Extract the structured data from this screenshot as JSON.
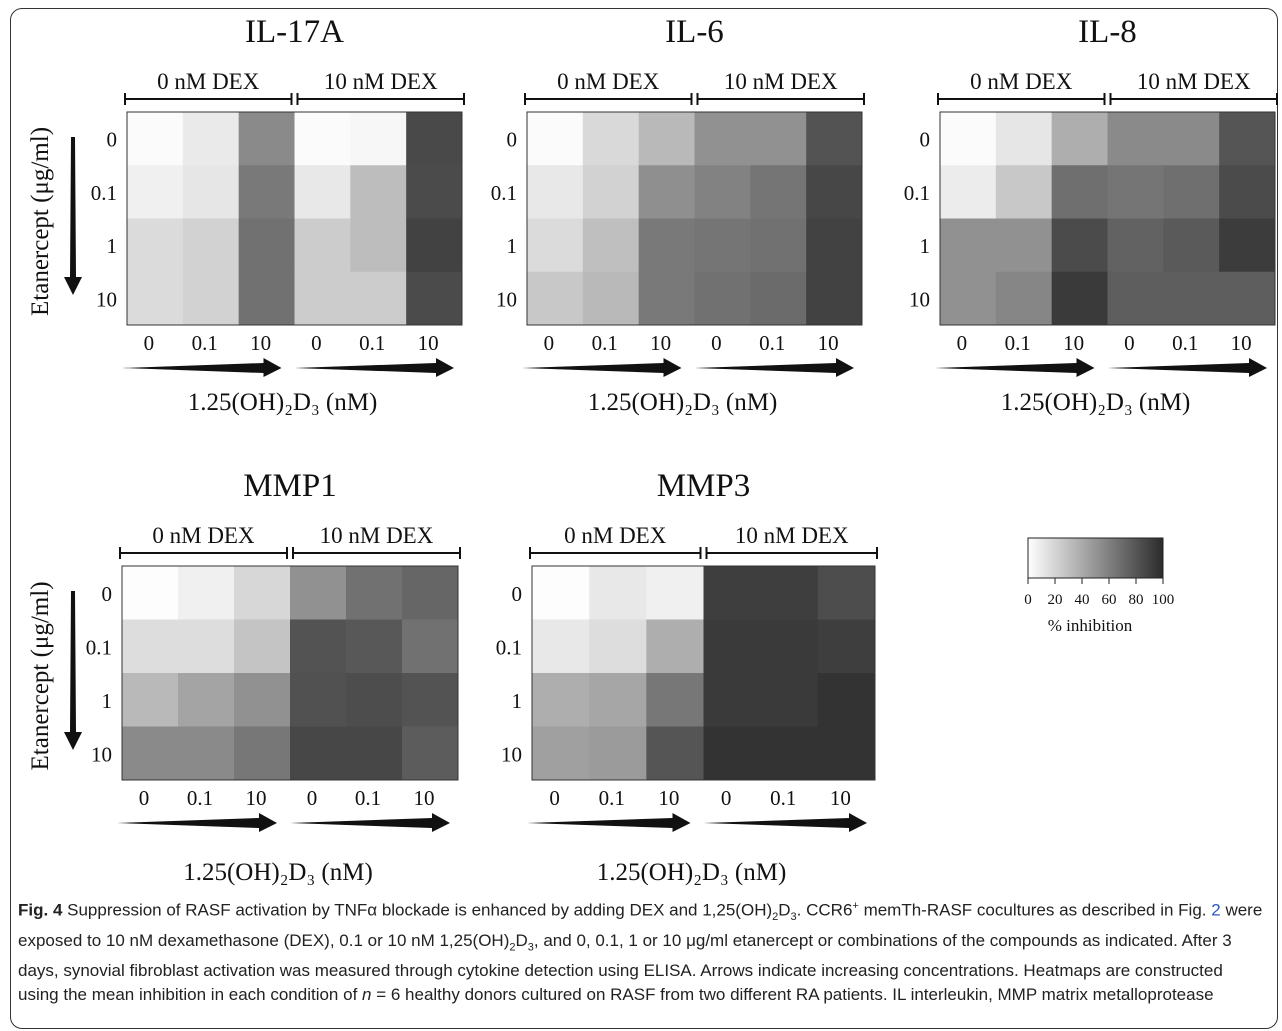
{
  "chart_data": [
    {
      "type": "heatmap",
      "title": "IL-17A",
      "groups": [
        "0 nM DEX",
        "10 nM DEX"
      ],
      "x_ticks": [
        "0",
        "0.1",
        "10",
        "0",
        "0.1",
        "10"
      ],
      "y_ticks": [
        "0",
        "0.1",
        "1",
        "10"
      ],
      "xlabel": "1.25(OH)₂D₃ (nM)",
      "ylabel": "Etanercept (μg/ml)",
      "values": [
        [
          2,
          10,
          55,
          2,
          4,
          86
        ],
        [
          7,
          12,
          63,
          11,
          31,
          85
        ],
        [
          17,
          21,
          67,
          24,
          31,
          89
        ],
        [
          17,
          21,
          67,
          24,
          24,
          85
        ]
      ]
    },
    {
      "type": "heatmap",
      "title": "IL-6",
      "groups": [
        "0 nM DEX",
        "10 nM DEX"
      ],
      "x_ticks": [
        "0",
        "0.1",
        "10",
        "0",
        "0.1",
        "10"
      ],
      "y_ticks": [
        "0",
        "0.1",
        "1",
        "10"
      ],
      "xlabel": "1.25(OH)₂D₃ (nM)",
      "ylabel": "",
      "values": [
        [
          2,
          18,
          33,
          52,
          52,
          81
        ],
        [
          11,
          21,
          53,
          59,
          65,
          87
        ],
        [
          17,
          30,
          63,
          65,
          67,
          89
        ],
        [
          26,
          33,
          63,
          67,
          70,
          89
        ]
      ]
    },
    {
      "type": "heatmap",
      "title": "IL-8",
      "groups": [
        "0 nM DEX",
        "10 nM DEX"
      ],
      "x_ticks": [
        "0",
        "0.1",
        "10",
        "0",
        "0.1",
        "10"
      ],
      "y_ticks": [
        "0",
        "0.1",
        "1",
        "10"
      ],
      "xlabel": "1.25(OH)₂D₃ (nM)",
      "ylabel": "",
      "values": [
        [
          2,
          12,
          38,
          55,
          55,
          80
        ],
        [
          9,
          26,
          68,
          65,
          68,
          85
        ],
        [
          52,
          52,
          85,
          74,
          78,
          92
        ],
        [
          52,
          57,
          93,
          76,
          76,
          76
        ]
      ]
    },
    {
      "type": "heatmap",
      "title": "MMP1",
      "groups": [
        "0 nM DEX",
        "10 nM DEX"
      ],
      "x_ticks": [
        "0",
        "0.1",
        "10",
        "0",
        "0.1",
        "10"
      ],
      "y_ticks": [
        "0",
        "0.1",
        "1",
        "10"
      ],
      "xlabel": "1.25(OH)₂D₃ (nM)",
      "ylabel": "Etanercept (μg/ml)",
      "values": [
        [
          1,
          7,
          19,
          52,
          67,
          72
        ],
        [
          16,
          16,
          28,
          81,
          79,
          67
        ],
        [
          33,
          43,
          52,
          82,
          84,
          81
        ],
        [
          55,
          55,
          64,
          87,
          87,
          77
        ]
      ]
    },
    {
      "type": "heatmap",
      "title": "MMP3",
      "groups": [
        "0 nM DEX",
        "10 nM DEX"
      ],
      "x_ticks": [
        "0",
        "0.1",
        "10",
        "0",
        "0.1",
        "10"
      ],
      "y_ticks": [
        "0",
        "0.1",
        "1",
        "10"
      ],
      "xlabel": "1.25(OH)₂D₃ (nM)",
      "ylabel": "",
      "values": [
        [
          1,
          11,
          7,
          91,
          91,
          84
        ],
        [
          11,
          16,
          38,
          93,
          93,
          91
        ],
        [
          38,
          42,
          64,
          93,
          93,
          96
        ],
        [
          45,
          47,
          80,
          96,
          96,
          96
        ]
      ]
    }
  ],
  "colorbar": {
    "ticks": [
      "0",
      "20",
      "40",
      "60",
      "80",
      "100"
    ],
    "label": "% inhibition",
    "min": 0,
    "max": 100,
    "color_low": "#ffffff",
    "color_high": "#2b2b2b"
  },
  "caption": {
    "label": "Fig. 4",
    "text_1": " Suppression of RASF activation by TNFα blockade is enhanced by adding DEX and 1,25(OH)",
    "text_2": "D",
    "text_3": ". CCR6",
    "text_4": " memTh-RASF cocultures as described in Fig. ",
    "fig_ref": "2",
    "text_5": " were exposed to 10 nM dexamethasone (DEX), 0.1 or 10 nM 1,25(OH)",
    "text_6": "D",
    "text_7": ", and 0, 0.1, 1 or 10 μg/ml etanercept or combinations of the compounds as indicated. After 3 days, synovial fibroblast activation was measured through cytokine detection using ELISA. Arrows indicate increasing concentrations. Heatmaps are constructed using the mean inhibition in each condition of ",
    "n_var": "n",
    "text_8": " = 6 healthy donors cultured on RASF from two different RA patients. IL interleukin, MMP matrix metalloprotease",
    "sub_2": "2",
    "sub_3": "3",
    "sup_plus": "+"
  }
}
